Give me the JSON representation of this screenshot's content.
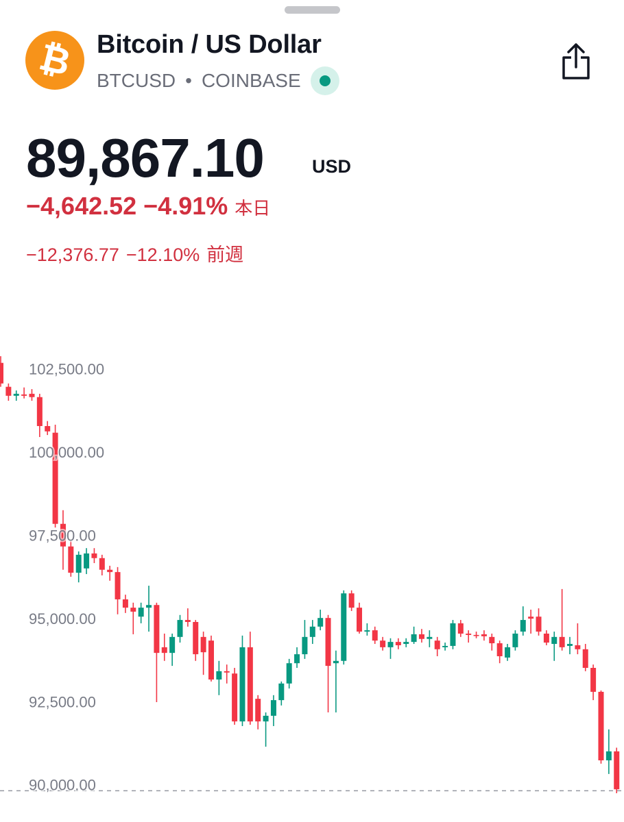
{
  "header": {
    "logo": "₿",
    "title": "Bitcoin / US Dollar",
    "symbol": "BTCUSD",
    "separator": "•",
    "exchange": "COINBASE",
    "price": "89,867.10",
    "currency": "USD",
    "day_change": "−4,642.52",
    "day_change_pct": "−4.91%",
    "day_label": "本日",
    "week_change": "−12,376.77",
    "week_change_pct": "−12.10%",
    "week_label": "前週"
  },
  "chart_data": {
    "type": "candlestick",
    "up_color": "#089981",
    "down_color": "#f23645",
    "ylim": [
      89750,
      102930
    ],
    "yticks": [
      {
        "value": 90000,
        "label": "90,000.00"
      },
      {
        "value": 92500,
        "label": "92,500.00"
      },
      {
        "value": 95000,
        "label": "95,000.00"
      },
      {
        "value": 97500,
        "label": "97,500.00"
      },
      {
        "value": 100000,
        "label": "100,000.00"
      },
      {
        "value": 102500,
        "label": "102,500.00"
      }
    ],
    "last_price": 89867.1,
    "ohlc": [
      [
        102730,
        102930,
        102010,
        102110
      ],
      [
        102010,
        102110,
        101590,
        101740
      ],
      [
        101740,
        101900,
        101590,
        101800
      ],
      [
        101780,
        101990,
        101660,
        101740
      ],
      [
        101800,
        101940,
        101590,
        101700
      ],
      [
        101700,
        101800,
        100500,
        100830
      ],
      [
        100830,
        100980,
        100560,
        100670
      ],
      [
        100630,
        100870,
        97780,
        97890
      ],
      [
        97890,
        98300,
        96510,
        97210
      ],
      [
        97210,
        97370,
        96300,
        96420
      ],
      [
        96420,
        97060,
        96130,
        96960
      ],
      [
        96550,
        97160,
        96380,
        97000
      ],
      [
        97000,
        97160,
        96710,
        96860
      ],
      [
        96860,
        96960,
        96340,
        96510
      ],
      [
        96510,
        96630,
        96180,
        96440
      ],
      [
        96440,
        96590,
        95170,
        95620
      ],
      [
        95620,
        95760,
        95210,
        95370
      ],
      [
        95370,
        95520,
        94570,
        95250
      ],
      [
        95100,
        95520,
        94900,
        95370
      ],
      [
        95370,
        96030,
        94650,
        95450
      ],
      [
        95450,
        95520,
        92530,
        94010
      ],
      [
        94180,
        94590,
        93770,
        94010
      ],
      [
        94010,
        94590,
        93620,
        94490
      ],
      [
        94490,
        95150,
        94320,
        95000
      ],
      [
        95000,
        95350,
        94800,
        94940
      ],
      [
        94940,
        95000,
        93770,
        93970
      ],
      [
        94490,
        94650,
        93350,
        94030
      ],
      [
        94380,
        94530,
        93150,
        93210
      ],
      [
        93210,
        93770,
        92740,
        93460
      ],
      [
        93460,
        93660,
        93090,
        93420
      ],
      [
        93390,
        93560,
        91850,
        91950
      ],
      [
        91950,
        94530,
        91810,
        94180
      ],
      [
        94180,
        94650,
        91850,
        91950
      ],
      [
        92630,
        92740,
        91710,
        91950
      ],
      [
        91950,
        92220,
        91190,
        92120
      ],
      [
        92120,
        92740,
        91810,
        92590
      ],
      [
        92590,
        93150,
        92430,
        93090
      ],
      [
        93090,
        93830,
        92940,
        93700
      ],
      [
        93700,
        94180,
        93560,
        93970
      ],
      [
        93970,
        95000,
        93830,
        94490
      ],
      [
        94490,
        95000,
        94280,
        94800
      ],
      [
        94800,
        95310,
        94690,
        95060
      ],
      [
        95060,
        95150,
        92220,
        93620
      ],
      [
        93700,
        94080,
        92220,
        93770
      ],
      [
        93770,
        95890,
        93660,
        95800
      ],
      [
        95800,
        95890,
        95270,
        95370
      ],
      [
        95370,
        95520,
        94590,
        94650
      ],
      [
        94650,
        94900,
        94530,
        94690
      ],
      [
        94690,
        94800,
        94280,
        94380
      ],
      [
        94380,
        94490,
        94080,
        94180
      ],
      [
        94180,
        94450,
        93830,
        94340
      ],
      [
        94340,
        94450,
        94120,
        94240
      ],
      [
        94280,
        94450,
        94180,
        94340
      ],
      [
        94340,
        94800,
        94280,
        94570
      ],
      [
        94570,
        94730,
        94320,
        94430
      ],
      [
        94430,
        94690,
        94180,
        94490
      ],
      [
        94380,
        94490,
        93910,
        94120
      ],
      [
        94180,
        94320,
        94080,
        94220
      ],
      [
        94220,
        95000,
        94120,
        94900
      ],
      [
        94900,
        95000,
        94490,
        94590
      ],
      [
        94590,
        94690,
        94320,
        94550
      ],
      [
        94550,
        94650,
        94450,
        94530
      ],
      [
        94570,
        94690,
        94380,
        94510
      ],
      [
        94490,
        94590,
        94080,
        94300
      ],
      [
        94300,
        94380,
        93700,
        93910
      ],
      [
        93870,
        94280,
        93770,
        94180
      ],
      [
        94180,
        94690,
        94080,
        94590
      ],
      [
        94650,
        95410,
        94530,
        95000
      ],
      [
        95100,
        95310,
        94590,
        95040
      ],
      [
        95100,
        95350,
        94530,
        94650
      ],
      [
        94590,
        94690,
        94240,
        94320
      ],
      [
        94280,
        94650,
        93770,
        94490
      ],
      [
        94490,
        95930,
        94080,
        94180
      ],
      [
        94220,
        94490,
        93970,
        94280
      ],
      [
        94240,
        94900,
        93970,
        94120
      ],
      [
        94120,
        94280,
        93460,
        93560
      ],
      [
        93560,
        93660,
        92590,
        92840
      ],
      [
        92840,
        92880,
        90680,
        90780
      ],
      [
        90780,
        91710,
        90370,
        91050
      ],
      [
        91050,
        91160,
        89790,
        89910
      ]
    ]
  }
}
